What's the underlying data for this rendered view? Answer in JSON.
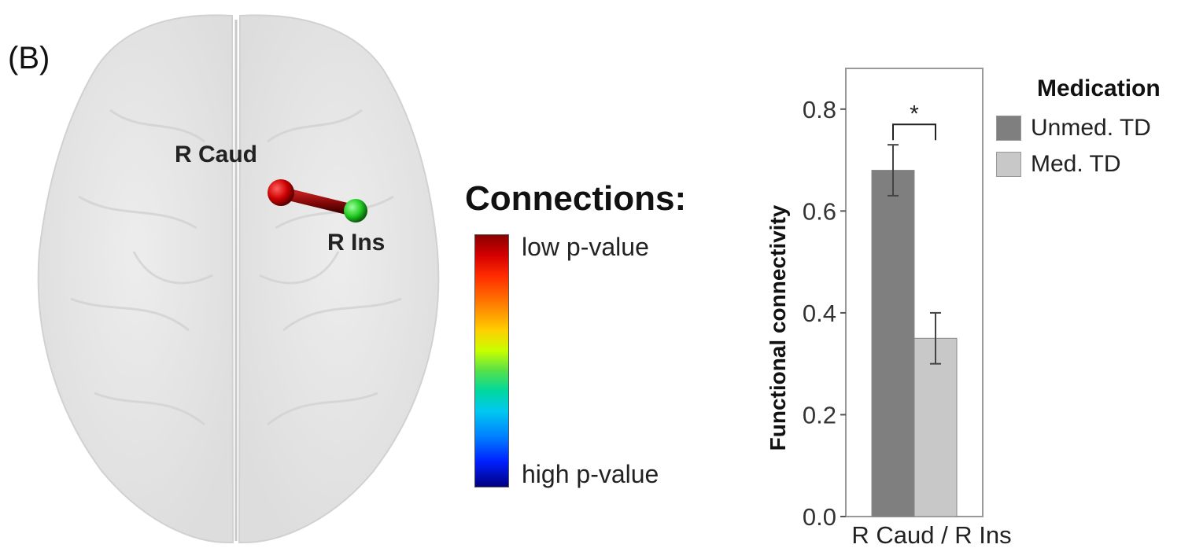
{
  "panel_label": "(B)",
  "brain": {
    "nodes": [
      {
        "label": "R Caud",
        "color": "#cc0000"
      },
      {
        "label": "R Ins",
        "color": "#22cc22"
      }
    ],
    "edge_color": "#8b0a0a"
  },
  "colorbar": {
    "title": "Connections:",
    "top_label": "low p-value",
    "bottom_label": "high p-value"
  },
  "chart_data": {
    "type": "bar",
    "categories": [
      "R Caud / R Ins"
    ],
    "series": [
      {
        "name": "Unmed. TD",
        "values": [
          0.68
        ],
        "errors": [
          0.05
        ],
        "color": "#7f7f7f"
      },
      {
        "name": "Med. TD",
        "values": [
          0.35
        ],
        "errors": [
          0.05
        ],
        "color": "#c8c8c8"
      }
    ],
    "ylabel": "Functional connectivity",
    "xlabel": "",
    "ylim": [
      0.0,
      0.88
    ],
    "yticks": [
      "0.0",
      "0.2",
      "0.4",
      "0.6",
      "0.8"
    ],
    "ytick_values": [
      0.0,
      0.2,
      0.4,
      0.6,
      0.8
    ],
    "significance": "*",
    "legend_title": "Medication",
    "legend_position": "right"
  }
}
